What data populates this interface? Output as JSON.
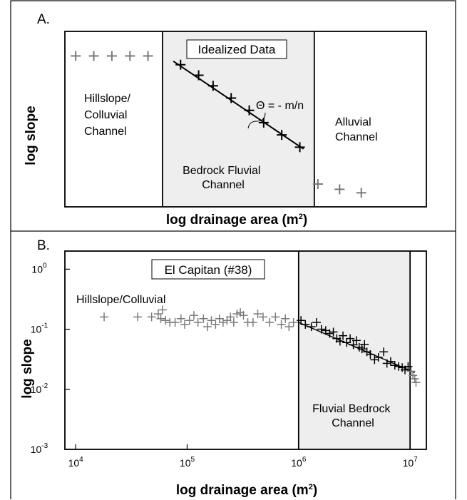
{
  "panel_a": {
    "letter": "A.",
    "title": "Idealized Data",
    "xlabel": "log drainage area (m",
    "xlabel_sup": "2",
    "xlabel_end": ")",
    "ylabel": "log slope",
    "region_hillslope": [
      "Hillslope/",
      "Colluvial",
      "Channel"
    ],
    "region_bedrock": [
      "Bedrock Fluvial",
      "Channel"
    ],
    "region_alluvial": [
      "Alluvial",
      "Channel"
    ],
    "equation": "Θ = - m/n"
  },
  "panel_b": {
    "letter": "B.",
    "title": "El Capitan (#38)",
    "xlabel": "log drainage area (m",
    "xlabel_sup": "2",
    "xlabel_end": ")",
    "ylabel": "log slope",
    "region_hillslope": "Hillslope/Colluvial",
    "region_fluvial": [
      "Fluvial Bedrock",
      "Channel"
    ],
    "xtick_base": "10",
    "xtick_exps": [
      "4",
      "5",
      "6",
      "7"
    ],
    "ytick_base": "10",
    "ytick_exps": [
      "0",
      "-1",
      "-2",
      "-3"
    ]
  },
  "colors": {
    "grey_marker": "#7a7a7a",
    "black_marker": "#000000",
    "shade": "#eeeeee"
  },
  "chart_data": [
    {
      "type": "scatter",
      "title": "Idealized Data",
      "xlabel": "log drainage area (m²)",
      "ylabel": "log slope",
      "xscale": "relative",
      "yscale": "relative",
      "xlim": [
        0,
        100
      ],
      "ylim": [
        0,
        100
      ],
      "series": [
        {
          "color": "#7a7a7a",
          "points": [
            [
              3,
              86
            ],
            [
              8,
              86
            ],
            [
              13,
              86
            ],
            [
              18,
              86
            ],
            [
              23,
              86
            ]
          ]
        },
        {
          "color": "#000000",
          "points": [
            [
              32,
              81
            ],
            [
              37,
              75
            ],
            [
              41,
              69
            ],
            [
              46,
              62
            ],
            [
              51,
              55
            ],
            [
              55,
              48
            ],
            [
              60,
              41
            ],
            [
              65,
              34
            ]
          ]
        },
        {
          "color": "#7a7a7a",
          "points": [
            [
              70,
              13
            ],
            [
              76,
              10
            ],
            [
              82,
              8
            ]
          ]
        }
      ],
      "trendline": [
        [
          30,
          83
        ],
        [
          66,
          33
        ]
      ],
      "regions": [
        {
          "name": "Hillslope/Colluvial Channel",
          "x": [
            0,
            27
          ]
        },
        {
          "name": "Bedrock Fluvial Channel",
          "x": [
            27,
            69
          ],
          "shaded": true
        },
        {
          "name": "Alluvial Channel",
          "x": [
            69,
            100
          ]
        }
      ],
      "annotations": [
        "Θ = - m/n"
      ]
    },
    {
      "type": "scatter",
      "title": "El Capitan (#38)",
      "xlabel": "log drainage area (m²)",
      "ylabel": "log slope",
      "xscale": "log",
      "yscale": "log",
      "xlim": [
        8000,
        14000000
      ],
      "ylim": [
        0.001,
        2
      ],
      "xticks": [
        10000,
        100000,
        1000000,
        10000000
      ],
      "yticks": [
        1,
        0.1,
        0.01,
        0.001
      ],
      "series": [
        {
          "color": "#7a7a7a",
          "points": [
            [
              18000,
              0.16
            ],
            [
              36000,
              0.16
            ],
            [
              48000,
              0.16
            ],
            [
              55000,
              0.18
            ],
            [
              58000,
              0.15
            ],
            [
              60000,
              0.21
            ],
            [
              64000,
              0.14
            ],
            [
              70000,
              0.13
            ],
            [
              78000,
              0.13
            ],
            [
              88000,
              0.15
            ],
            [
              95000,
              0.12
            ],
            [
              105000,
              0.14
            ],
            [
              115000,
              0.17
            ],
            [
              125000,
              0.13
            ],
            [
              140000,
              0.15
            ],
            [
              152000,
              0.11
            ],
            [
              165000,
              0.14
            ],
            [
              180000,
              0.12
            ],
            [
              195000,
              0.15
            ],
            [
              210000,
              0.13
            ],
            [
              228000,
              0.14
            ],
            [
              245000,
              0.16
            ],
            [
              262000,
              0.13
            ],
            [
              280000,
              0.18
            ],
            [
              300000,
              0.19
            ],
            [
              320000,
              0.17
            ],
            [
              350000,
              0.13
            ],
            [
              390000,
              0.13
            ],
            [
              430000,
              0.18
            ],
            [
              480000,
              0.16
            ],
            [
              550000,
              0.13
            ],
            [
              620000,
              0.16
            ],
            [
              700000,
              0.12
            ],
            [
              760000,
              0.15
            ],
            [
              820000,
              0.11
            ],
            [
              900000,
              0.13
            ],
            [
              10200000,
              0.02
            ],
            [
              10600000,
              0.017
            ],
            [
              11000000,
              0.015
            ],
            [
              11300000,
              0.013
            ]
          ]
        },
        {
          "color": "#000000",
          "points": [
            [
              1050000,
              0.14
            ],
            [
              1150000,
              0.12
            ],
            [
              1300000,
              0.11
            ],
            [
              1450000,
              0.13
            ],
            [
              1600000,
              0.1
            ],
            [
              1750000,
              0.095
            ],
            [
              1900000,
              0.085
            ],
            [
              2050000,
              0.09
            ],
            [
              2200000,
              0.07
            ],
            [
              2350000,
              0.063
            ],
            [
              2500000,
              0.078
            ],
            [
              2700000,
              0.06
            ],
            [
              2900000,
              0.07
            ],
            [
              3100000,
              0.055
            ],
            [
              3300000,
              0.065
            ],
            [
              3500000,
              0.05
            ],
            [
              3700000,
              0.047
            ],
            [
              3900000,
              0.056
            ],
            [
              4100000,
              0.042
            ],
            [
              4400000,
              0.038
            ],
            [
              4800000,
              0.031
            ],
            [
              5200000,
              0.034
            ],
            [
              5800000,
              0.042
            ],
            [
              6200000,
              0.027
            ],
            [
              6700000,
              0.029
            ],
            [
              7300000,
              0.025
            ],
            [
              7900000,
              0.024
            ],
            [
              8500000,
              0.023
            ],
            [
              9000000,
              0.021
            ],
            [
              9600000,
              0.024
            ]
          ]
        }
      ],
      "trendline": [
        [
          1000000,
          0.13
        ],
        [
          11000000,
          0.019
        ]
      ],
      "regions": [
        {
          "name": "Hillslope/Colluvial",
          "x": [
            8000,
            1000000
          ]
        },
        {
          "name": "Fluvial Bedrock Channel",
          "x": [
            1000000,
            10000000
          ],
          "shaded": true
        }
      ]
    }
  ]
}
